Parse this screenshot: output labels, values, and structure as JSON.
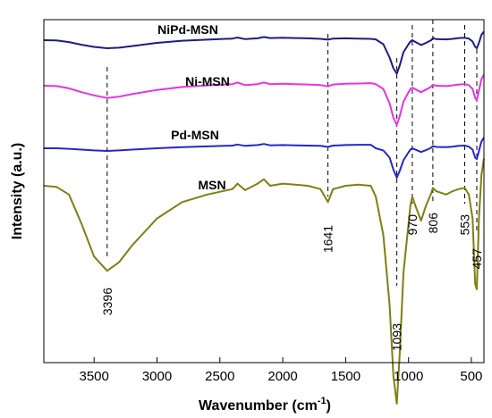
{
  "chart_data": {
    "type": "line",
    "title": "",
    "xlabel": "Wavenumber (cm",
    "xlabel_sup": "-1",
    "xlabel_close": ")",
    "ylabel": "Intensity (a.u.)",
    "xlim": [
      3900,
      400
    ],
    "x_reversed": true,
    "y_ticks_shown": false,
    "grid": false,
    "legend": "inline labels above each curve",
    "x_ticks": [
      {
        "value": 3500,
        "label": "3500"
      },
      {
        "value": 3000,
        "label": "3000"
      },
      {
        "value": 2500,
        "label": "2500"
      },
      {
        "value": 2000,
        "label": "2000"
      },
      {
        "value": 1500,
        "label": "1500"
      },
      {
        "value": 1000,
        "label": "1000"
      },
      {
        "value": 500,
        "label": "500"
      }
    ],
    "peaks": [
      {
        "value": 3396,
        "label": "3396"
      },
      {
        "value": 1641,
        "label": "1641"
      },
      {
        "value": 1093,
        "label": "1093"
      },
      {
        "value": 970,
        "label": "970"
      },
      {
        "value": 806,
        "label": "806"
      },
      {
        "value": 553,
        "label": "553"
      },
      {
        "value": 457,
        "label": "457"
      }
    ],
    "series": [
      {
        "name": "NiPd-MSN",
        "color": "#1c1c84",
        "x": [
          3900,
          3800,
          3700,
          3600,
          3500,
          3396,
          3300,
          3200,
          3000,
          2800,
          2600,
          2400,
          2360,
          2300,
          2200,
          2150,
          2100,
          2000,
          1900,
          1800,
          1700,
          1641,
          1600,
          1500,
          1400,
          1300,
          1260,
          1200,
          1150,
          1120,
          1093,
          1070,
          1040,
          1000,
          985,
          970,
          940,
          900,
          860,
          820,
          806,
          780,
          700,
          650,
          600,
          553,
          520,
          490,
          470,
          457,
          440,
          420,
          400
        ],
        "y": [
          1.0,
          0.99,
          0.93,
          0.83,
          0.75,
          0.7,
          0.72,
          0.78,
          0.9,
          0.98,
          1.02,
          1.06,
          1.1,
          1.04,
          1.07,
          1.12,
          1.08,
          1.09,
          1.08,
          1.07,
          1.05,
          1.02,
          1.06,
          1.07,
          1.06,
          1.05,
          1.03,
          0.85,
          0.35,
          -0.05,
          -0.25,
          0.05,
          0.55,
          0.85,
          0.95,
          1.0,
          0.92,
          0.82,
          0.9,
          1.0,
          1.08,
          1.04,
          1.03,
          1.05,
          1.08,
          1.09,
          1.06,
          0.95,
          0.75,
          0.7,
          0.9,
          1.2,
          1.32
        ]
      },
      {
        "name": "Ni-MSN",
        "color": "#e632e6",
        "x": [
          3900,
          3800,
          3700,
          3600,
          3500,
          3396,
          3300,
          3200,
          3000,
          2800,
          2600,
          2400,
          2360,
          2300,
          2200,
          2150,
          2100,
          2000,
          1900,
          1800,
          1700,
          1641,
          1600,
          1500,
          1400,
          1300,
          1260,
          1200,
          1150,
          1120,
          1093,
          1070,
          1040,
          1000,
          985,
          970,
          940,
          900,
          860,
          820,
          806,
          780,
          700,
          650,
          600,
          553,
          520,
          490,
          470,
          457,
          440,
          420,
          400
        ],
        "y": [
          1.0,
          0.99,
          0.92,
          0.8,
          0.7,
          0.62,
          0.66,
          0.74,
          0.87,
          0.96,
          1.01,
          1.05,
          1.1,
          1.02,
          1.05,
          1.1,
          1.05,
          1.06,
          1.05,
          1.04,
          1.02,
          0.98,
          1.04,
          1.06,
          1.07,
          1.08,
          1.05,
          0.9,
          0.45,
          0.0,
          -0.22,
          0.05,
          0.5,
          0.8,
          0.9,
          0.94,
          0.88,
          0.8,
          0.88,
          0.97,
          1.03,
          1.0,
          0.99,
          1.01,
          1.04,
          1.05,
          1.02,
          0.9,
          0.62,
          0.55,
          0.85,
          1.2,
          1.35
        ]
      },
      {
        "name": "Pd-MSN",
        "color": "#2626cc",
        "x": [
          3900,
          3800,
          3700,
          3600,
          3500,
          3396,
          3300,
          3200,
          3000,
          2800,
          2600,
          2400,
          2360,
          2300,
          2200,
          2150,
          2100,
          2000,
          1900,
          1800,
          1700,
          1641,
          1600,
          1500,
          1400,
          1300,
          1260,
          1200,
          1150,
          1120,
          1093,
          1070,
          1040,
          1000,
          985,
          970,
          940,
          900,
          860,
          820,
          806,
          780,
          700,
          650,
          600,
          553,
          520,
          490,
          470,
          457,
          440,
          420,
          400
        ],
        "y": [
          1.0,
          1.0,
          0.98,
          0.95,
          0.92,
          0.9,
          0.92,
          0.95,
          1.0,
          1.04,
          1.07,
          1.1,
          1.14,
          1.09,
          1.12,
          1.16,
          1.11,
          1.12,
          1.11,
          1.1,
          1.09,
          1.05,
          1.1,
          1.12,
          1.13,
          1.13,
          1.0,
          0.92,
          0.65,
          0.2,
          -0.1,
          0.15,
          0.55,
          0.85,
          0.95,
          1.0,
          0.94,
          0.86,
          0.93,
          1.02,
          1.08,
          1.05,
          1.04,
          1.06,
          1.09,
          1.1,
          1.06,
          0.95,
          0.65,
          0.6,
          0.9,
          1.25,
          1.4
        ]
      },
      {
        "name": "MSN",
        "color": "#7f7f14",
        "x": [
          3900,
          3800,
          3700,
          3600,
          3500,
          3396,
          3300,
          3200,
          3000,
          2800,
          2600,
          2400,
          2360,
          2300,
          2200,
          2150,
          2100,
          2000,
          1900,
          1800,
          1700,
          1641,
          1600,
          1500,
          1400,
          1300,
          1260,
          1200,
          1150,
          1120,
          1093,
          1070,
          1040,
          1000,
          985,
          970,
          940,
          900,
          860,
          820,
          806,
          780,
          700,
          650,
          600,
          553,
          520,
          490,
          470,
          457,
          440,
          420,
          400
        ],
        "y": [
          1.0,
          0.99,
          0.92,
          0.65,
          0.35,
          0.22,
          0.3,
          0.45,
          0.7,
          0.85,
          0.92,
          0.97,
          1.02,
          0.96,
          1.02,
          1.06,
          1.0,
          1.02,
          1.01,
          1.0,
          0.97,
          0.85,
          0.97,
          1.0,
          1.01,
          1.0,
          0.9,
          0.55,
          -0.1,
          -0.75,
          -1.0,
          -0.55,
          0.2,
          0.65,
          0.82,
          0.9,
          0.8,
          0.68,
          0.82,
          0.93,
          0.98,
          0.95,
          0.92,
          0.95,
          0.97,
          0.98,
          0.92,
          0.7,
          0.1,
          0.05,
          0.7,
          1.1,
          1.25
        ]
      }
    ]
  }
}
